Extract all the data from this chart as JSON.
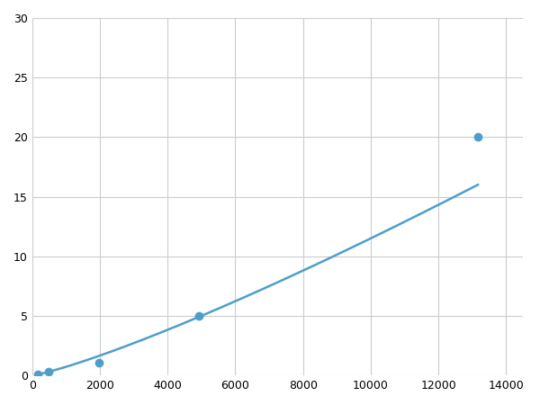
{
  "x_points": [
    164,
    492,
    1975,
    4938,
    13169
  ],
  "y_points": [
    0.1,
    0.3,
    1.1,
    5.0,
    20.0
  ],
  "line_color": "#4d9fca",
  "marker_color": "#4d9fca",
  "marker_size": 6,
  "line_width": 1.8,
  "xlim": [
    0,
    14500
  ],
  "ylim": [
    0,
    30
  ],
  "xticks": [
    0,
    2000,
    4000,
    6000,
    8000,
    10000,
    12000,
    14000
  ],
  "yticks": [
    0,
    5,
    10,
    15,
    20,
    25,
    30
  ],
  "grid_color": "#cccccc",
  "background_color": "#ffffff",
  "tick_labelsize": 9
}
